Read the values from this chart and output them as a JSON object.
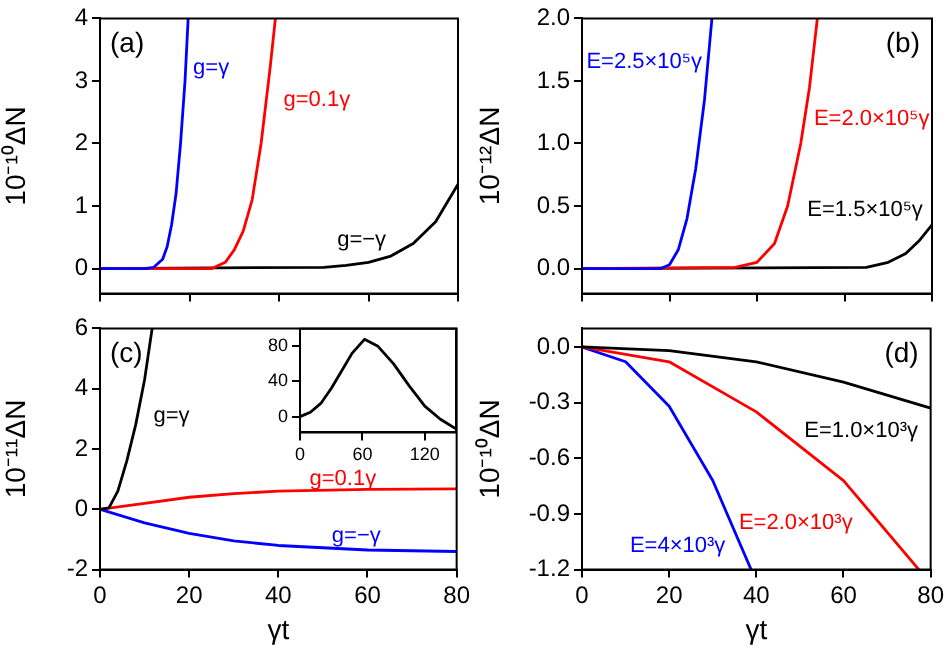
{
  "chart_data": [
    {
      "type": "line",
      "ylabel": "10⁻¹⁰ΔN",
      "annotations": [
        "(a)"
      ],
      "xlim": [
        0,
        80
      ],
      "xticks": [
        0,
        20,
        40,
        60,
        80
      ],
      "ylim": [
        -0.4,
        4
      ],
      "yticks": [
        0,
        1,
        2,
        3,
        4
      ],
      "tick_labels": "y",
      "marker": "none",
      "series": [
        {
          "name": "g=γ",
          "color": "#0000ff",
          "x": [
            0,
            10,
            12,
            14,
            15,
            16,
            17,
            18,
            19,
            19.7
          ],
          "values": [
            0,
            0,
            0.02,
            0.15,
            0.35,
            0.7,
            1.2,
            2,
            3,
            4
          ]
        },
        {
          "name": "g=0.1γ",
          "color": "#ff0000",
          "x": [
            0,
            25,
            28,
            30,
            32,
            34,
            36,
            38,
            39.2
          ],
          "values": [
            0,
            0,
            0.1,
            0.3,
            0.6,
            1.1,
            2,
            3.2,
            4
          ]
        },
        {
          "name": "g=−γ",
          "color": "#000000",
          "x": [
            0,
            50,
            55,
            60,
            65,
            70,
            75,
            80
          ],
          "values": [
            0,
            0.02,
            0.05,
            0.1,
            0.2,
            0.4,
            0.75,
            1.35
          ]
        }
      ]
    },
    {
      "type": "line",
      "ylabel": "10⁻¹²ΔN",
      "annotations": [
        "(b)"
      ],
      "xlim": [
        0,
        80
      ],
      "xticks": [
        0,
        20,
        40,
        60,
        80
      ],
      "ylim": [
        -0.2,
        2
      ],
      "yticks": [
        {
          "value": 0,
          "label": "0.0"
        },
        0.5,
        {
          "value": 1,
          "label": "1.0"
        },
        1.5,
        {
          "value": 2,
          "label": "2.0"
        }
      ],
      "tick_labels": "y",
      "marker": "none",
      "series": [
        {
          "name": "E=2.5×10⁵γ",
          "color": "#0000ff",
          "x": [
            0,
            18,
            20,
            22,
            24,
            26,
            28,
            29.7
          ],
          "values": [
            0,
            0,
            0.03,
            0.15,
            0.4,
            0.8,
            1.35,
            2
          ]
        },
        {
          "name": "E=2.0×10⁵γ",
          "color": "#ff0000",
          "x": [
            0,
            35,
            40,
            44,
            47,
            50,
            52,
            53.8
          ],
          "values": [
            0,
            0.01,
            0.05,
            0.2,
            0.5,
            1.0,
            1.45,
            2
          ]
        },
        {
          "name": "E=1.5×10⁵γ",
          "color": "#000000",
          "x": [
            0,
            65,
            70,
            74,
            77,
            80
          ],
          "values": [
            0,
            0.01,
            0.05,
            0.12,
            0.22,
            0.35
          ]
        }
      ]
    },
    {
      "type": "line",
      "xlabel": "γt",
      "ylabel": "10⁻¹¹ΔN",
      "annotations": [
        "(c)"
      ],
      "xlim": [
        0,
        80
      ],
      "xticks": [
        0,
        20,
        40,
        60,
        80
      ],
      "ylim": [
        -2,
        6
      ],
      "yticks": [
        -2,
        0,
        2,
        4,
        6
      ],
      "marker": "none",
      "series": [
        {
          "name": "g=γ",
          "color": "#000000",
          "x": [
            0,
            2,
            4,
            6,
            8,
            10,
            11.7
          ],
          "values": [
            0,
            0.05,
            0.6,
            1.6,
            2.8,
            4.3,
            6
          ]
        },
        {
          "name": "g=0.1γ",
          "color": "#ff0000",
          "x": [
            0,
            10,
            20,
            30,
            40,
            60,
            80
          ],
          "values": [
            0,
            0.2,
            0.4,
            0.52,
            0.6,
            0.66,
            0.68
          ]
        },
        {
          "name": "g=−γ",
          "color": "#0000ff",
          "x": [
            0,
            10,
            20,
            30,
            40,
            60,
            80
          ],
          "values": [
            0,
            -0.45,
            -0.8,
            -1.05,
            -1.2,
            -1.35,
            -1.4
          ]
        }
      ]
    },
    {
      "type": "line",
      "xlabel": "γt",
      "ylabel": "10⁻¹⁰ΔN",
      "annotations": [
        "(d)"
      ],
      "xlim": [
        0,
        80
      ],
      "xticks": [
        0,
        20,
        40,
        60,
        80
      ],
      "ylim": [
        -1.2,
        0.1
      ],
      "yticks": [
        {
          "value": 0,
          "label": "0.0"
        },
        -0.3,
        -0.6,
        -0.9,
        -1.2
      ],
      "marker": "none",
      "series": [
        {
          "name": "E=1.0×10³γ",
          "color": "#000000",
          "x": [
            0,
            20,
            40,
            60,
            80
          ],
          "values": [
            0,
            -0.02,
            -0.08,
            -0.19,
            -0.33
          ]
        },
        {
          "name": "E=2.0×10³γ",
          "color": "#ff0000",
          "x": [
            0,
            20,
            40,
            60,
            77.3
          ],
          "values": [
            0,
            -0.08,
            -0.35,
            -0.72,
            -1.2
          ]
        },
        {
          "name": "E=4×10³γ",
          "color": "#0000ff",
          "x": [
            0,
            10,
            20,
            30,
            38.8
          ],
          "values": [
            0,
            -0.08,
            -0.32,
            -0.72,
            -1.2
          ]
        }
      ]
    },
    {
      "type": "line",
      "xlim": [
        0,
        150
      ],
      "xticks": [
        0,
        60,
        120
      ],
      "ylim": [
        -18,
        100
      ],
      "yticks": [
        0,
        40,
        80
      ],
      "marker": "none",
      "series": [
        {
          "color": "#000000",
          "x": [
            0,
            10,
            20,
            30,
            40,
            50,
            62,
            75,
            90,
            105,
            120,
            135,
            150
          ],
          "values": [
            0,
            5,
            15,
            32,
            52,
            72,
            88,
            80,
            60,
            35,
            12,
            -3,
            -14
          ]
        }
      ]
    }
  ]
}
